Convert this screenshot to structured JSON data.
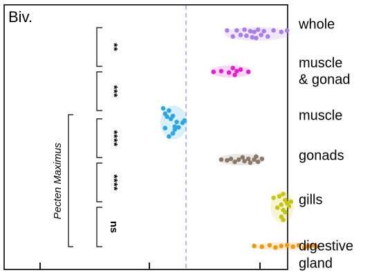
{
  "chart_data": {
    "type": "scatter",
    "panel_label": "Biv.",
    "x_ticks": [
      "",
      "",
      ""
    ],
    "grid": false,
    "reference_line": "dashed vertical",
    "categories": [
      "whole",
      "muscle\n& gonad",
      "muscle",
      "gonads",
      "gills",
      "digestive\ngland"
    ],
    "series": [
      {
        "category": "whole",
        "color": "#a97ee8",
        "points": [
          [
            5.9,
            0.5
          ],
          [
            6.05,
            0.1
          ],
          [
            6.15,
            0.5
          ],
          [
            6.25,
            0.2
          ],
          [
            6.35,
            0.55
          ],
          [
            6.4,
            0.15
          ],
          [
            6.5,
            0.45
          ],
          [
            6.55,
            0.05
          ],
          [
            6.6,
            0.4
          ],
          [
            6.65,
            0.0
          ],
          [
            6.7,
            0.55
          ],
          [
            6.78,
            0.2
          ],
          [
            6.85,
            0.45
          ],
          [
            6.95,
            0.1
          ],
          [
            7.1,
            0.5
          ],
          [
            7.3,
            0.4
          ],
          [
            7.45,
            0.5
          ]
        ]
      },
      {
        "category": "muscle & gonad",
        "color": "#e620c8",
        "points": [
          [
            5.55,
            0.5
          ],
          [
            5.75,
            0.55
          ],
          [
            5.95,
            0.45
          ],
          [
            6.05,
            0.75
          ],
          [
            6.1,
            0.3
          ],
          [
            6.15,
            0.55
          ],
          [
            6.25,
            0.65
          ],
          [
            6.45,
            0.5
          ]
        ]
      },
      {
        "category": "muscle",
        "color": "#2aa6e0",
        "points": [
          [
            4.25,
            1.1
          ],
          [
            4.3,
            0.75
          ],
          [
            4.4,
            0.95
          ],
          [
            4.35,
            0.55
          ],
          [
            4.45,
            0.4
          ],
          [
            4.5,
            0.6
          ],
          [
            4.6,
            0.2
          ],
          [
            4.55,
            -0.1
          ],
          [
            4.65,
            -0.15
          ],
          [
            4.75,
            0.15
          ],
          [
            4.8,
            0.3
          ],
          [
            4.5,
            -0.55
          ],
          [
            4.55,
            -0.3
          ],
          [
            4.4,
            -0.75
          ],
          [
            4.3,
            -0.2
          ]
        ]
      },
      {
        "category": "gonads",
        "color": "#8a7868",
        "points": [
          [
            5.75,
            0.5
          ],
          [
            5.9,
            0.45
          ],
          [
            6.0,
            0.55
          ],
          [
            6.1,
            0.35
          ],
          [
            6.2,
            0.5
          ],
          [
            6.3,
            0.65
          ],
          [
            6.35,
            0.4
          ],
          [
            6.45,
            0.55
          ],
          [
            6.5,
            0.3
          ],
          [
            6.6,
            0.5
          ],
          [
            6.65,
            0.7
          ],
          [
            6.7,
            0.35
          ],
          [
            6.8,
            0.55
          ]
        ]
      },
      {
        "category": "gills",
        "color": "#c8c414",
        "points": [
          [
            7.1,
            0.85
          ],
          [
            7.25,
            0.95
          ],
          [
            7.35,
            1.1
          ],
          [
            7.4,
            0.7
          ],
          [
            7.45,
            0.5
          ],
          [
            7.3,
            0.4
          ],
          [
            7.2,
            0.2
          ],
          [
            7.35,
            0.05
          ],
          [
            7.4,
            -0.1
          ],
          [
            7.5,
            0.3
          ],
          [
            7.55,
            0.6
          ],
          [
            7.3,
            -0.4
          ],
          [
            7.35,
            -0.6
          ]
        ]
      },
      {
        "category": "digestive gland",
        "color": "#f4960c",
        "points": [
          [
            6.6,
            0.5
          ],
          [
            6.8,
            0.45
          ],
          [
            7.0,
            0.55
          ],
          [
            7.15,
            0.4
          ],
          [
            7.3,
            0.5
          ],
          [
            7.45,
            0.55
          ],
          [
            7.6,
            0.45
          ],
          [
            7.75,
            0.55
          ],
          [
            7.9,
            0.4
          ],
          [
            8.0,
            0.5
          ],
          [
            8.1,
            0.55
          ],
          [
            8.2,
            0.45
          ]
        ]
      }
    ],
    "significance": [
      {
        "between": [
          "whole",
          "muscle & gonad"
        ],
        "label": "**"
      },
      {
        "between": [
          "muscle & gonad",
          "muscle"
        ],
        "label": "***"
      },
      {
        "between": [
          "muscle",
          "gonads"
        ],
        "label": "****"
      },
      {
        "between": [
          "gonads",
          "gills"
        ],
        "label": "****"
      },
      {
        "between": [
          "gills",
          "digestive gland"
        ],
        "label": "ns"
      }
    ],
    "species_label": "Pecten Maximus"
  }
}
